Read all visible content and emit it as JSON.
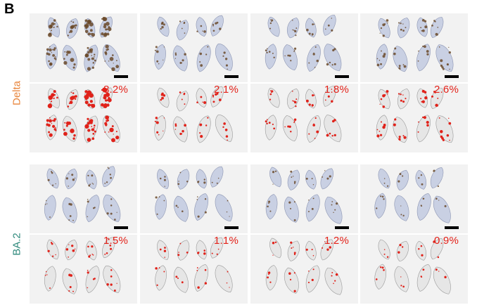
{
  "figure": {
    "panel_letter": "B",
    "colors": {
      "tissue_top": "#c9d0e3",
      "tissue_top_stroke": "#8d96b3",
      "stain_brown": "#6b4a2a",
      "tissue_bottom": "#e6e6e6",
      "tissue_bottom_stroke": "#9a9a9a",
      "mask_red": "#e0221a",
      "percent_text": "#e32119"
    },
    "rows": [
      {
        "label": "Delta",
        "label_color": "#e8843a",
        "tiles": [
          {
            "percent": "8.2%",
            "stain_level": 1.0
          },
          {
            "percent": "2.1%",
            "stain_level": 0.3
          },
          {
            "percent": "1.8%",
            "stain_level": 0.25
          },
          {
            "percent": "2.6%",
            "stain_level": 0.4
          }
        ]
      },
      {
        "label": "BA.2",
        "label_color": "#2f8a7c",
        "tiles": [
          {
            "percent": "1.5%",
            "stain_level": 0.2
          },
          {
            "percent": "1.1%",
            "stain_level": 0.14
          },
          {
            "percent": "1.2%",
            "stain_level": 0.16
          },
          {
            "percent": "0.9%",
            "stain_level": 0.12
          }
        ]
      }
    ]
  }
}
